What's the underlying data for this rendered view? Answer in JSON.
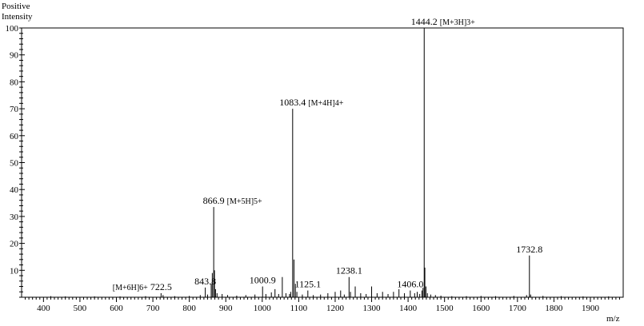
{
  "chart_data": {
    "type": "spectrum",
    "ylabel_line1": "Positive",
    "ylabel_line2": "Intensity",
    "xlabel": "m/z",
    "xlim": [
      340,
      1990
    ],
    "ylim": [
      0,
      100
    ],
    "x_ticks": [
      400,
      500,
      600,
      700,
      800,
      900,
      1000,
      1100,
      1200,
      1300,
      1400,
      1500,
      1600,
      1700,
      1800,
      1900
    ],
    "y_ticks": [
      10,
      20,
      30,
      40,
      50,
      60,
      70,
      80,
      90,
      100
    ],
    "peaks": [
      {
        "mz": 420,
        "intensity": 0.4
      },
      {
        "mz": 460,
        "intensity": 0.3
      },
      {
        "mz": 540,
        "intensity": 0.3
      },
      {
        "mz": 610,
        "intensity": 0.3
      },
      {
        "mz": 680,
        "intensity": 0.4
      },
      {
        "mz": 722.5,
        "intensity": 1.5
      },
      {
        "mz": 728,
        "intensity": 0.8
      },
      {
        "mz": 760,
        "intensity": 0.4
      },
      {
        "mz": 800,
        "intensity": 0.5
      },
      {
        "mz": 830,
        "intensity": 0.8
      },
      {
        "mz": 843.8,
        "intensity": 3.6
      },
      {
        "mz": 850,
        "intensity": 1.0
      },
      {
        "mz": 860,
        "intensity": 5.0
      },
      {
        "mz": 863,
        "intensity": 9.0
      },
      {
        "mz": 866.9,
        "intensity": 33.5
      },
      {
        "mz": 869,
        "intensity": 10.0
      },
      {
        "mz": 872,
        "intensity": 3.0
      },
      {
        "mz": 876,
        "intensity": 1.5
      },
      {
        "mz": 890,
        "intensity": 1.2
      },
      {
        "mz": 905,
        "intensity": 0.8
      },
      {
        "mz": 930,
        "intensity": 0.6
      },
      {
        "mz": 955,
        "intensity": 0.8
      },
      {
        "mz": 980,
        "intensity": 1.0
      },
      {
        "mz": 1000.9,
        "intensity": 4.0
      },
      {
        "mz": 1010,
        "intensity": 1.2
      },
      {
        "mz": 1025,
        "intensity": 1.8
      },
      {
        "mz": 1035,
        "intensity": 3.0
      },
      {
        "mz": 1045,
        "intensity": 1.2
      },
      {
        "mz": 1055,
        "intensity": 7.5
      },
      {
        "mz": 1065,
        "intensity": 1.5
      },
      {
        "mz": 1075,
        "intensity": 1.2
      },
      {
        "mz": 1078,
        "intensity": 2.0
      },
      {
        "mz": 1083.4,
        "intensity": 70.0
      },
      {
        "mz": 1087,
        "intensity": 14.0
      },
      {
        "mz": 1091,
        "intensity": 5.0
      },
      {
        "mz": 1095,
        "intensity": 2.0
      },
      {
        "mz": 1110,
        "intensity": 1.0
      },
      {
        "mz": 1125.1,
        "intensity": 2.5
      },
      {
        "mz": 1140,
        "intensity": 0.8
      },
      {
        "mz": 1160,
        "intensity": 1.0
      },
      {
        "mz": 1180,
        "intensity": 1.5
      },
      {
        "mz": 1200,
        "intensity": 2.0
      },
      {
        "mz": 1215,
        "intensity": 2.5
      },
      {
        "mz": 1225,
        "intensity": 1.0
      },
      {
        "mz": 1238.1,
        "intensity": 7.5
      },
      {
        "mz": 1242,
        "intensity": 2.0
      },
      {
        "mz": 1255,
        "intensity": 4.0
      },
      {
        "mz": 1270,
        "intensity": 1.5
      },
      {
        "mz": 1285,
        "intensity": 1.2
      },
      {
        "mz": 1300,
        "intensity": 4.0
      },
      {
        "mz": 1315,
        "intensity": 1.5
      },
      {
        "mz": 1330,
        "intensity": 2.0
      },
      {
        "mz": 1345,
        "intensity": 1.2
      },
      {
        "mz": 1360,
        "intensity": 2.0
      },
      {
        "mz": 1375,
        "intensity": 3.0
      },
      {
        "mz": 1390,
        "intensity": 1.5
      },
      {
        "mz": 1406.0,
        "intensity": 2.5
      },
      {
        "mz": 1418,
        "intensity": 1.5
      },
      {
        "mz": 1425,
        "intensity": 2.0
      },
      {
        "mz": 1432,
        "intensity": 1.2
      },
      {
        "mz": 1438,
        "intensity": 2.5
      },
      {
        "mz": 1441,
        "intensity": 3.5
      },
      {
        "mz": 1444.2,
        "intensity": 100.0
      },
      {
        "mz": 1446,
        "intensity": 11.0
      },
      {
        "mz": 1449,
        "intensity": 4.0
      },
      {
        "mz": 1453,
        "intensity": 1.5
      },
      {
        "mz": 1462,
        "intensity": 1.0
      },
      {
        "mz": 1475,
        "intensity": 0.8
      },
      {
        "mz": 1490,
        "intensity": 0.6
      },
      {
        "mz": 1520,
        "intensity": 0.4
      },
      {
        "mz": 1560,
        "intensity": 0.4
      },
      {
        "mz": 1600,
        "intensity": 0.5
      },
      {
        "mz": 1640,
        "intensity": 0.4
      },
      {
        "mz": 1690,
        "intensity": 0.5
      },
      {
        "mz": 1725,
        "intensity": 0.8
      },
      {
        "mz": 1732.8,
        "intensity": 15.5
      },
      {
        "mz": 1736,
        "intensity": 1.0
      },
      {
        "mz": 1770,
        "intensity": 0.5
      },
      {
        "mz": 1820,
        "intensity": 0.4
      },
      {
        "mz": 1880,
        "intensity": 0.3
      },
      {
        "mz": 1950,
        "intensity": 0.3
      }
    ],
    "annotations": [
      {
        "label": "722.5",
        "prefix": "[M+6H]6+",
        "suffix": "",
        "mz": 722.5,
        "intensity": 1.5
      },
      {
        "label": "843.8",
        "prefix": "",
        "suffix": "",
        "mz": 843.8,
        "intensity": 3.6
      },
      {
        "label": "866.9",
        "prefix": "",
        "suffix": "[M+5H]5+",
        "mz": 866.9,
        "intensity": 33.5
      },
      {
        "label": "1000.9",
        "prefix": "",
        "suffix": "",
        "mz": 1000.9,
        "intensity": 4.0
      },
      {
        "label": "1083.4",
        "prefix": "",
        "suffix": "[M+4H]4+",
        "mz": 1083.4,
        "intensity": 70.0
      },
      {
        "label": "1125.1",
        "prefix": "",
        "suffix": "",
        "mz": 1125.1,
        "intensity": 2.5
      },
      {
        "label": "1238.1",
        "prefix": "",
        "suffix": "",
        "mz": 1238.1,
        "intensity": 7.5
      },
      {
        "label": "1406.0",
        "prefix": "",
        "suffix": "",
        "mz": 1406.0,
        "intensity": 2.5
      },
      {
        "label": "1444.2",
        "prefix": "",
        "suffix": "[M+3H]3+",
        "mz": 1444.2,
        "intensity": 100.0
      },
      {
        "label": "1732.8",
        "prefix": "",
        "suffix": "",
        "mz": 1732.8,
        "intensity": 15.5
      }
    ]
  }
}
